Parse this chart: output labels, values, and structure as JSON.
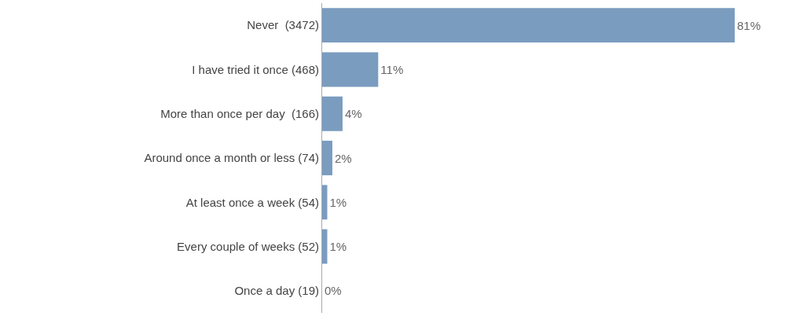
{
  "chart_data": {
    "type": "bar",
    "orientation": "horizontal",
    "categories": [
      "Never  (3472)",
      "I have tried it once (468)",
      "More than once per day  (166)",
      "Around once a month or less (74)",
      "At least once a week (54)",
      "Every couple of weeks (52)",
      "Once a day (19)"
    ],
    "values": [
      81,
      11,
      4,
      2,
      1,
      1,
      0
    ],
    "value_labels": [
      "81%",
      "11%",
      "4%",
      "2%",
      "1%",
      "1%",
      "0%"
    ],
    "color": "#7a9cbf",
    "tick_labels": "y"
  }
}
